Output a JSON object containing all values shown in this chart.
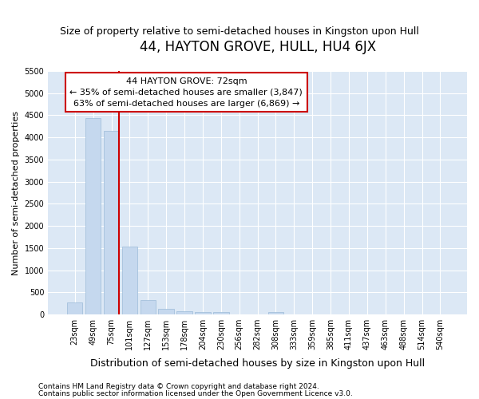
{
  "title": "44, HAYTON GROVE, HULL, HU4 6JX",
  "subtitle": "Size of property relative to semi-detached houses in Kingston upon Hull",
  "xlabel": "Distribution of semi-detached houses by size in Kingston upon Hull",
  "ylabel": "Number of semi-detached properties",
  "footnote1": "Contains HM Land Registry data © Crown copyright and database right 2024.",
  "footnote2": "Contains public sector information licensed under the Open Government Licence v3.0.",
  "categories": [
    "23sqm",
    "49sqm",
    "75sqm",
    "101sqm",
    "127sqm",
    "153sqm",
    "178sqm",
    "204sqm",
    "230sqm",
    "256sqm",
    "282sqm",
    "308sqm",
    "333sqm",
    "359sqm",
    "385sqm",
    "411sqm",
    "437sqm",
    "463sqm",
    "488sqm",
    "514sqm",
    "540sqm"
  ],
  "values": [
    280,
    4430,
    4150,
    1540,
    320,
    125,
    75,
    60,
    60,
    0,
    0,
    60,
    0,
    0,
    0,
    0,
    0,
    0,
    0,
    0,
    0
  ],
  "bar_color": "#c5d8ee",
  "bar_edge_color": "#9bbbd8",
  "ref_line_x": 2.4,
  "ref_line_color": "#cc0000",
  "ann_line1": "44 HAYTON GROVE: 72sqm",
  "ann_line2": "← 35% of semi-detached houses are smaller (3,847)",
  "ann_line3": "63% of semi-detached houses are larger (6,869) →",
  "ann_box_fc": "#ffffff",
  "ann_box_ec": "#cc0000",
  "ylim_max": 5500,
  "yticks": [
    0,
    500,
    1000,
    1500,
    2000,
    2500,
    3000,
    3500,
    4000,
    4500,
    5000,
    5500
  ],
  "fig_bg_color": "#ffffff",
  "plot_bg_color": "#dce8f5",
  "grid_color": "#ffffff",
  "title_fontsize": 12,
  "subtitle_fontsize": 9,
  "tick_fontsize": 7,
  "ylabel_fontsize": 8,
  "xlabel_fontsize": 9,
  "footnote_fontsize": 6.5
}
